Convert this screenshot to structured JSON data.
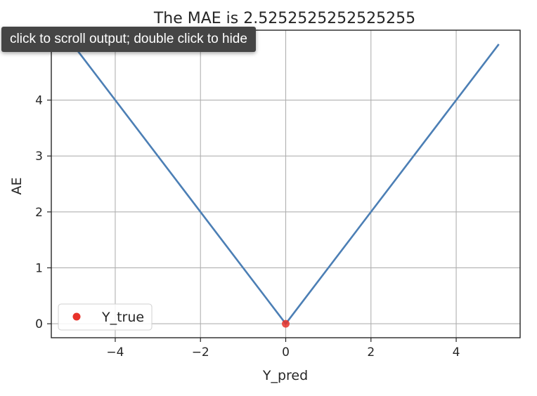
{
  "output_tooltip": {
    "text": "click to scroll output; double click to hide"
  },
  "chart_data": {
    "type": "line",
    "title": "The MAE is  2.5252525252525255",
    "xlabel": "Y_pred",
    "ylabel": "AE",
    "xlim": [
      -5.5,
      5.5
    ],
    "ylim": [
      -0.25,
      5.25
    ],
    "xticks": [
      -4,
      -2,
      0,
      2,
      4
    ],
    "yticks": [
      0,
      1,
      2,
      3,
      4
    ],
    "xtick_labels": [
      "−4",
      "−2",
      "0",
      "2",
      "4"
    ],
    "ytick_labels": [
      "0",
      "1",
      "2",
      "3",
      "4"
    ],
    "grid": true,
    "legend_placement": "lower-left",
    "series": [
      {
        "kind": "line",
        "color": "#4c7fb5",
        "x": [
          -5,
          0,
          5
        ],
        "y": [
          5,
          0,
          5
        ]
      },
      {
        "kind": "scatter",
        "name": "Y_true",
        "color": "#e8322a",
        "x": [
          0
        ],
        "y": [
          0
        ]
      }
    ]
  }
}
